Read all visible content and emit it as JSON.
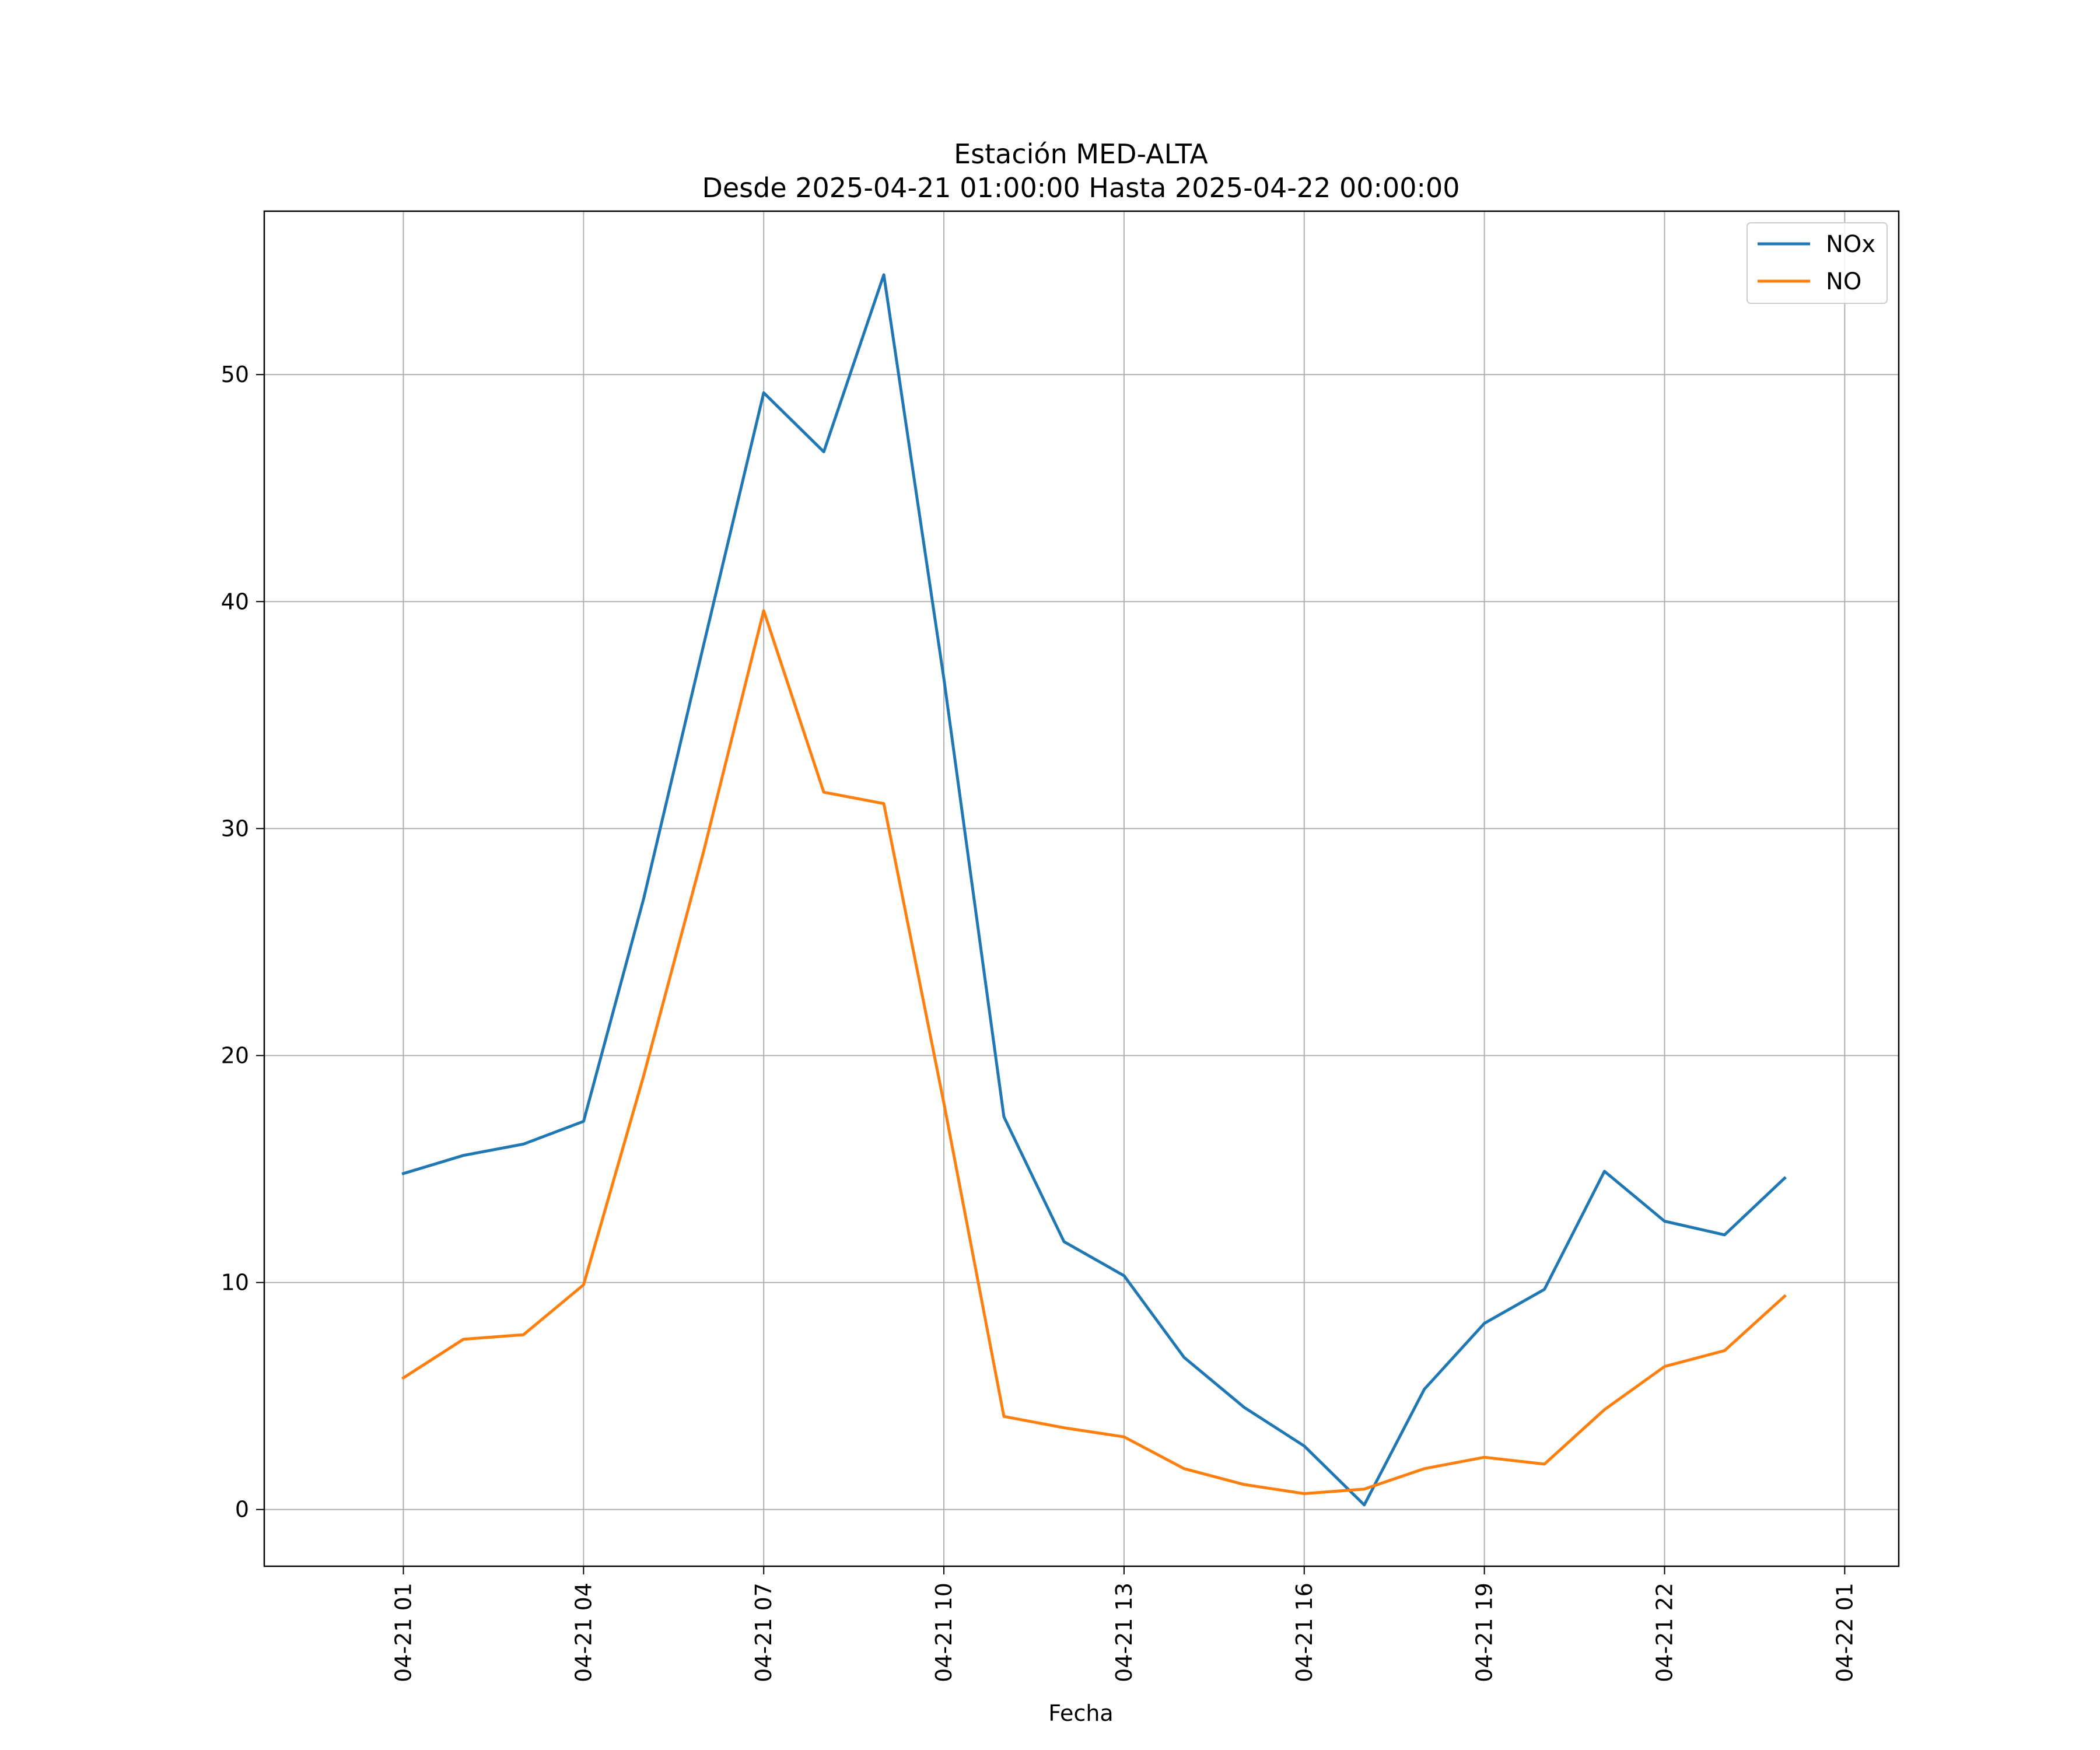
{
  "chart_data": {
    "type": "line",
    "title": "Estación MED-ALTA",
    "subtitle": "Desde 2025-04-21 01:00:00 Hasta 2025-04-22 00:00:00",
    "xlabel": "Fecha",
    "ylabel": "",
    "x": [
      "2025-04-21 01:00",
      "2025-04-21 02:00",
      "2025-04-21 03:00",
      "2025-04-21 04:00",
      "2025-04-21 05:00",
      "2025-04-21 06:00",
      "2025-04-21 07:00",
      "2025-04-21 08:00",
      "2025-04-21 09:00",
      "2025-04-21 10:00",
      "2025-04-21 11:00",
      "2025-04-21 12:00",
      "2025-04-21 13:00",
      "2025-04-21 14:00",
      "2025-04-21 15:00",
      "2025-04-21 16:00",
      "2025-04-21 17:00",
      "2025-04-21 18:00",
      "2025-04-21 19:00",
      "2025-04-21 20:00",
      "2025-04-21 21:00",
      "2025-04-21 22:00",
      "2025-04-21 23:00",
      "2025-04-22 00:00"
    ],
    "series": [
      {
        "name": "NOx",
        "color": "#1f77b4",
        "values": [
          14.8,
          15.6,
          16.1,
          17.1,
          26.9,
          38.1,
          49.2,
          46.6,
          54.4,
          36.6,
          17.3,
          11.8,
          10.3,
          6.7,
          4.5,
          2.8,
          0.2,
          5.3,
          8.2,
          9.7,
          14.9,
          12.7,
          12.1,
          14.6
        ]
      },
      {
        "name": "NO",
        "color": "#ff7f0e",
        "values": [
          5.8,
          7.5,
          7.7,
          9.9,
          19.1,
          29.0,
          39.6,
          31.6,
          31.1,
          17.9,
          4.1,
          3.6,
          3.2,
          1.8,
          1.1,
          0.7,
          0.9,
          1.8,
          2.3,
          2.0,
          4.4,
          6.3,
          7.0,
          9.4
        ]
      }
    ],
    "xlim": [
      "2025-04-20 22:41",
      "2025-04-22 01:54"
    ],
    "ylim": [
      -2.5,
      57.2
    ],
    "x_ticks": [
      "2025-04-21 01:00",
      "2025-04-21 04:00",
      "2025-04-21 07:00",
      "2025-04-21 10:00",
      "2025-04-21 13:00",
      "2025-04-21 16:00",
      "2025-04-21 19:00",
      "2025-04-21 22:00",
      "2025-04-22 01:00"
    ],
    "x_tick_labels": [
      "04-21 01",
      "04-21 04",
      "04-21 07",
      "04-21 10",
      "04-21 13",
      "04-21 16",
      "04-21 19",
      "04-21 22",
      "04-22 01"
    ],
    "y_ticks": [
      0,
      10,
      20,
      30,
      40,
      50
    ],
    "y_tick_labels": [
      "0",
      "10",
      "20",
      "30",
      "40",
      "50"
    ],
    "grid": true,
    "legend_position": "top-right"
  }
}
